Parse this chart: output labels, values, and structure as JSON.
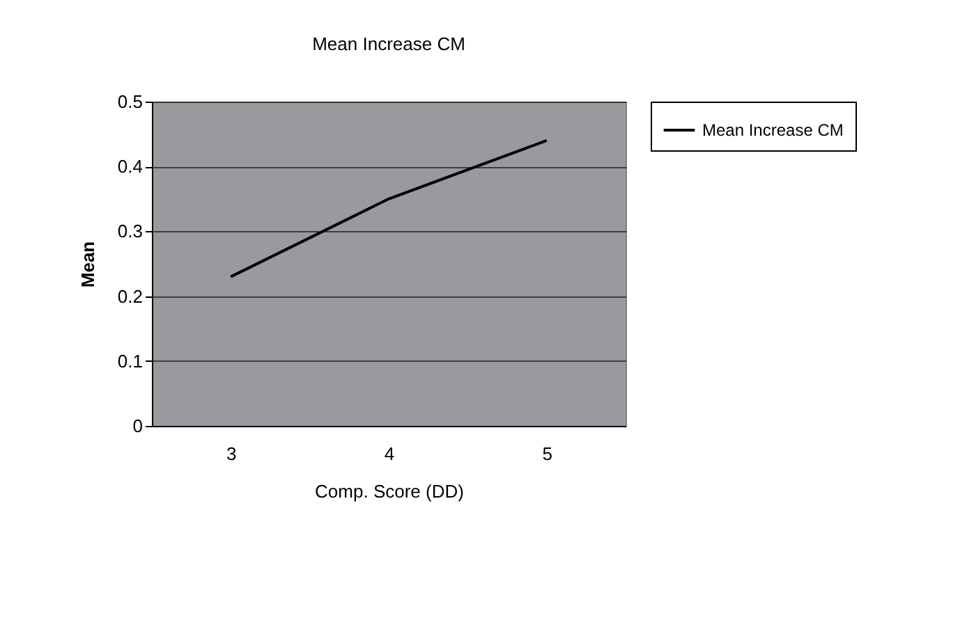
{
  "chart_data": {
    "type": "line",
    "title": "Mean Increase CM",
    "xlabel": "Comp. Score (DD)",
    "ylabel": "Mean",
    "categories": [
      "3",
      "4",
      "5"
    ],
    "series": [
      {
        "name": "Mean Increase CM",
        "color": "#000000",
        "values": [
          0.23,
          0.35,
          0.44
        ]
      }
    ],
    "ylim": [
      0,
      0.5
    ],
    "yticks": [
      0,
      0.1,
      0.2,
      0.3,
      0.4,
      0.5
    ],
    "grid": "y",
    "legend": "right",
    "marker": "none",
    "line_style": "solid"
  }
}
